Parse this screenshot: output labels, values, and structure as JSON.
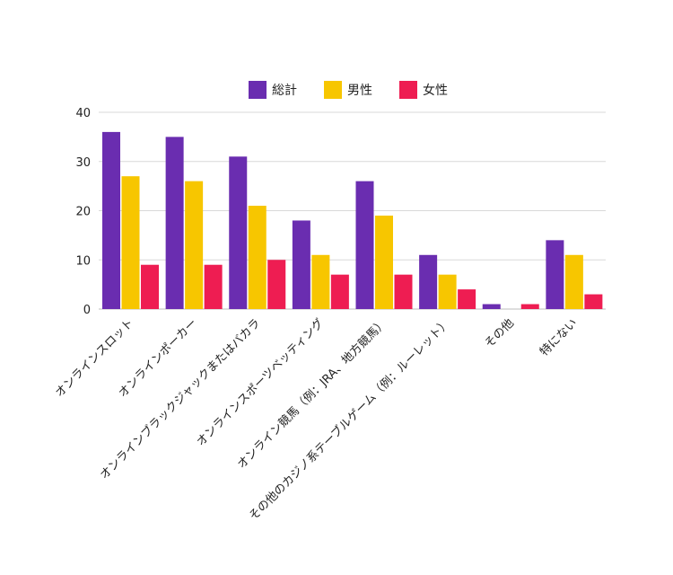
{
  "chart_data": {
    "type": "bar",
    "title": "",
    "xlabel": "",
    "ylabel": "",
    "ylim": [
      0,
      40
    ],
    "yticks": [
      0,
      10,
      20,
      30,
      40
    ],
    "grid": true,
    "legend_position": "top",
    "categories": [
      "オンラインスロット",
      "オンラインポーカー",
      "オンラインブラックジャックまたはバカラ",
      "オンラインスポーツベッティング",
      "オンライン競馬（例：JRA、地方競馬）",
      "その他のカジノ系テーブルゲーム（例：ルーレット）",
      "その他",
      "特にない"
    ],
    "series": [
      {
        "name": "総計",
        "color": "#6a2db0",
        "values": [
          36,
          35,
          31,
          18,
          26,
          11,
          1,
          14
        ]
      },
      {
        "name": "男性",
        "color": "#f7c600",
        "values": [
          27,
          26,
          21,
          11,
          19,
          7,
          0,
          11
        ]
      },
      {
        "name": "女性",
        "color": "#ee1d52",
        "values": [
          9,
          9,
          10,
          7,
          7,
          4,
          1,
          3
        ]
      }
    ]
  }
}
